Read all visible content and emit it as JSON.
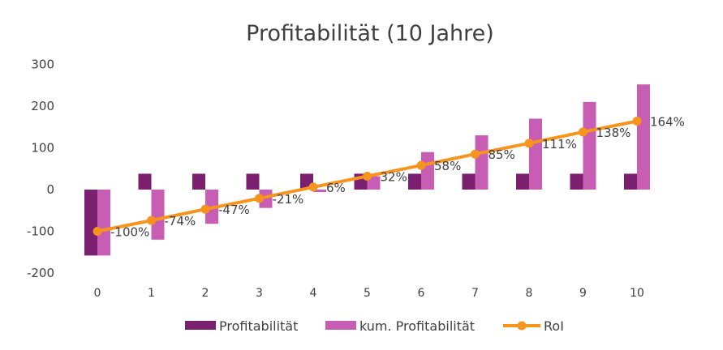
{
  "chart_data": {
    "type": "bar",
    "title": "Profitabilität (10 Jahre)",
    "xlabel": "",
    "ylabel": "",
    "categories": [
      "0",
      "1",
      "2",
      "3",
      "4",
      "5",
      "6",
      "7",
      "8",
      "9",
      "10"
    ],
    "ylim": [
      -200,
      300
    ],
    "yticks": [
      "300",
      "200",
      "100",
      "0",
      "-100",
      "-200"
    ],
    "ytick_values": [
      300,
      200,
      100,
      0,
      -100,
      -200
    ],
    "grid": false,
    "legend_position": "bottom",
    "series": [
      {
        "name": "Profitabilität",
        "kind": "bar",
        "color": "#7b1f6f",
        "values": [
          -158,
          38,
          38,
          38,
          38,
          38,
          38,
          38,
          38,
          38,
          38
        ]
      },
      {
        "name": "kum. Profitabilität",
        "kind": "bar",
        "color": "#c75eb4",
        "values": [
          -158,
          -120,
          -82,
          -44,
          -6,
          32,
          90,
          130,
          170,
          210,
          252
        ]
      },
      {
        "name": "RoI",
        "kind": "line",
        "color": "#f7941d",
        "values": [
          -100,
          -74,
          -47,
          -21,
          6,
          32,
          58,
          85,
          111,
          138,
          164
        ],
        "labels": [
          "-100%",
          "-74%",
          "-47%",
          "-21%",
          "6%",
          "32%",
          "58%",
          "85%",
          "111%",
          "138%",
          "164%"
        ]
      }
    ]
  }
}
